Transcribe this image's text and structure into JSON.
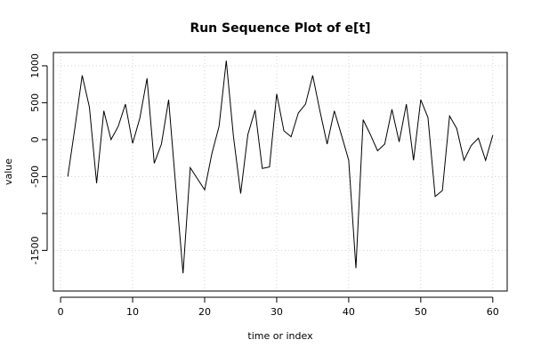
{
  "chart_data": {
    "type": "line",
    "title": "Run Sequence Plot of e[t]",
    "xlabel": "time or index",
    "ylabel": "value",
    "xlim": [
      -1,
      62
    ],
    "ylim": [
      -2050,
      1180
    ],
    "x_ticks": [
      0,
      10,
      20,
      30,
      40,
      50,
      60
    ],
    "x_tick_labels": [
      "0",
      "10",
      "20",
      "30",
      "40",
      "50",
      "60"
    ],
    "y_ticks": [
      -1500,
      -1000,
      -500,
      0,
      500,
      1000
    ],
    "y_tick_labels": [
      "-1500",
      "",
      "-500",
      "0",
      "500",
      "1000"
    ],
    "grid": true,
    "series": [
      {
        "x": [
          1,
          2,
          3,
          4,
          5,
          6,
          7,
          8,
          9,
          10,
          11,
          12,
          13,
          14,
          15,
          16,
          17,
          18,
          19,
          20,
          21,
          22,
          23,
          24,
          25,
          26,
          27,
          28,
          29,
          30,
          31,
          32,
          33,
          34,
          35,
          36,
          37,
          38,
          39,
          40,
          41,
          42,
          43,
          44,
          45,
          46,
          47,
          48,
          49,
          50,
          51,
          52,
          53,
          54,
          55,
          56,
          57,
          58,
          59,
          60
        ],
        "values": [
          -500,
          170,
          870,
          440,
          -590,
          390,
          0,
          180,
          480,
          -50,
          290,
          830,
          -320,
          -60,
          540,
          -650,
          -1810,
          -380,
          -530,
          -680,
          -190,
          180,
          1070,
          40,
          -730,
          70,
          400,
          -390,
          -370,
          620,
          120,
          40,
          360,
          480,
          870,
          390,
          -60,
          390,
          60,
          -280,
          -1740,
          270,
          70,
          -150,
          -60,
          410,
          -30,
          480,
          -280,
          540,
          300,
          -770,
          -690,
          320,
          150,
          -280,
          -80,
          20,
          -280,
          60
        ]
      }
    ]
  }
}
